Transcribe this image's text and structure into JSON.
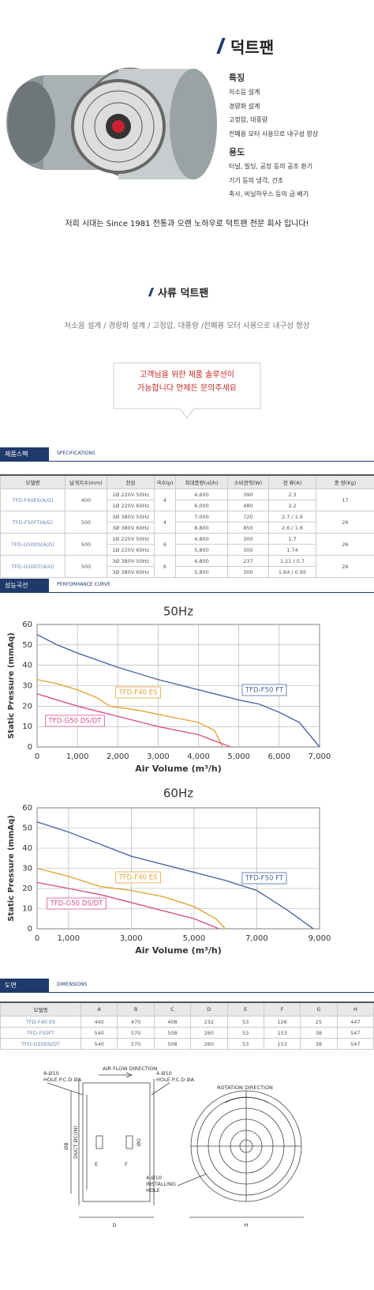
{
  "header": {
    "title": "덕트팬",
    "features_heading": "특징",
    "features": [
      "저소음 설계",
      "경량화 설계",
      "고정압, 대풍량",
      "전폐용 모터 사용으로 내구성 향상"
    ],
    "uses_heading": "용도",
    "uses": [
      "터널, 빌딩, 공장 등의 공조 환기",
      "기기 등의 냉각, 건조",
      "축사, 비닐하우스 등의 급·배기"
    ]
  },
  "slogan": "저희 시대는 Since 1981 전통과 오랜 노하우로 덕트팬 전문 회사 입니다!",
  "product": {
    "title": "사류 덕트팬",
    "subtitle": "저소음 설계 / 경량화 설계 / 고정압, 대풍량 /전폐용 모터 사용으로 내구성 향상"
  },
  "callout": [
    "고객님을 위한 제품 솔루션이",
    "가능합니다 언제든 문의주세요"
  ],
  "spec": {
    "tab": "제품스펙",
    "tab_en": "SPECIFICATIONS",
    "header": [
      "모델명",
      "날개지수(mm)",
      "전원",
      "극수(p)",
      "최대풍량(㎥/h)",
      "소비전력(W)",
      "전 류(A)",
      "중 량(Kg)"
    ],
    "rows": [
      {
        "model": "TFD-F40ES(A/G)",
        "blade": "400",
        "poles": "4",
        "weight": "17",
        "sub": [
          [
            "1Ø 220V 50Hz",
            "4,600",
            "390",
            "2.3"
          ],
          [
            "1Ø 220V 60Hz",
            "6,000",
            "480",
            "2.2"
          ]
        ]
      },
      {
        "model": "TFD-F50FT(A/G)",
        "blade": "500",
        "poles": "4",
        "weight": "26",
        "sub": [
          [
            "3Ø 380V 50Hz",
            "7,000",
            "720",
            "2.7 / 1.6"
          ],
          [
            "3Ø 380V 60Hz",
            "8,800",
            "850",
            "2.6 / 1.6"
          ]
        ]
      },
      {
        "model": "TFD-G50DS(A/G)",
        "blade": "500",
        "poles": "6",
        "weight": "26",
        "sub": [
          [
            "1Ø 220V 50Hz",
            "4,800",
            "300",
            "1.7"
          ],
          [
            "1Ø 220V 60Hz",
            "5,800",
            "300",
            "1.74"
          ]
        ]
      },
      {
        "model": "TFD-G50DT(A/G)",
        "blade": "500",
        "poles": "6",
        "weight": "26",
        "sub": [
          [
            "3Ø 380V 50Hz",
            "4,800",
            "237",
            "1.21 / 0.7"
          ],
          [
            "3Ø 380V 60Hz",
            "5,800",
            "300",
            "1.64 / 0.95"
          ]
        ]
      }
    ]
  },
  "performance": {
    "tab": "성능곡선",
    "tab_en": "PERFORMANCE CURVE"
  },
  "chart_data": [
    {
      "type": "line",
      "title": "50Hz",
      "x_label": "Air Volume (m³/h)",
      "y_label": "Static Pressure (mmAq)",
      "xlim": [
        0,
        7000
      ],
      "ylim": [
        0,
        60
      ],
      "xticks": [
        0,
        {
          "value": 1000,
          "label": "1,000"
        },
        {
          "value": 2000,
          "label": "2,000"
        },
        {
          "value": 3000,
          "label": "3,000"
        },
        {
          "value": 4000,
          "label": "4,000"
        },
        {
          "value": 5000,
          "label": "5,000"
        },
        {
          "value": 6000,
          "label": "6,000"
        },
        {
          "value": 7000,
          "label": "7,000"
        }
      ],
      "yticks": [
        0,
        10,
        20,
        30,
        40,
        50,
        60
      ],
      "grid": true,
      "series": [
        {
          "name": "TFD-F50 FT",
          "color": "#4a6aa5",
          "x": [
            0,
            500,
            1000,
            2000,
            3000,
            4000,
            5000,
            5500,
            6000,
            6500,
            7000
          ],
          "values": [
            55,
            50,
            46,
            39,
            33,
            28,
            23,
            21,
            17,
            12,
            0
          ]
        },
        {
          "name": "TFD-F40 ES",
          "color": "#e3a43a",
          "x": [
            0,
            500,
            1000,
            1500,
            1800,
            2500,
            3000,
            4000,
            4400,
            4600
          ],
          "values": [
            33,
            31,
            28,
            24,
            20,
            18,
            16,
            12,
            8,
            0
          ]
        },
        {
          "name": "TFD-G50 DS/DT",
          "color": "#d9508e",
          "x": [
            0,
            1000,
            2000,
            3000,
            4000,
            4800
          ],
          "values": [
            26,
            20,
            15,
            10,
            6,
            0
          ]
        }
      ]
    },
    {
      "type": "line",
      "title": "60Hz",
      "x_label": "Air Volume (m³/h)",
      "y_label": "Static Pressure (mmAq)",
      "xlim": [
        0,
        9000
      ],
      "ylim": [
        0,
        60
      ],
      "xticks": [
        0,
        {
          "value": 1000,
          "label": "1,000"
        },
        {
          "value": 3000,
          "label": "3,000"
        },
        {
          "value": 5000,
          "label": "5,000"
        },
        {
          "value": 7000,
          "label": "7,000"
        },
        {
          "value": 9000,
          "label": "9,000"
        }
      ],
      "yticks": [
        0,
        10,
        20,
        30,
        40,
        50,
        60
      ],
      "grid": true,
      "series": [
        {
          "name": "TFD-F50 FT",
          "color": "#4a6aa5",
          "x": [
            0,
            1000,
            2000,
            3000,
            4000,
            5000,
            6000,
            7000,
            8000,
            8800
          ],
          "values": [
            53,
            48,
            42,
            36,
            32,
            28,
            24,
            19,
            9,
            0
          ]
        },
        {
          "name": "TFD-F40 ES",
          "color": "#e3a43a",
          "x": [
            0,
            1000,
            2000,
            3000,
            4000,
            5000,
            5700,
            6000
          ],
          "values": [
            30,
            26,
            21,
            19,
            16,
            11,
            5,
            0
          ]
        },
        {
          "name": "TFD-G50 DS/DT",
          "color": "#d9508e",
          "x": [
            0,
            1000,
            2000,
            3000,
            4000,
            5000,
            5800
          ],
          "values": [
            23,
            20,
            17,
            13,
            9,
            5,
            0
          ]
        }
      ]
    }
  ],
  "dimensions": {
    "tab": "도면",
    "tab_en": "DIMENSIONS",
    "header": [
      "모델명",
      "A",
      "B",
      "C",
      "D",
      "E",
      "F",
      "G",
      "H"
    ],
    "rows": [
      [
        "TFD-F40 ES",
        "440",
        "470",
        "408",
        "232",
        "53",
        "126",
        "25",
        "447"
      ],
      [
        "TFD-F50FT",
        "540",
        "570",
        "508",
        "260",
        "53",
        "153",
        "38",
        "547"
      ],
      [
        "TFD-G50DS/DT",
        "540",
        "570",
        "508",
        "260",
        "53",
        "153",
        "38",
        "547"
      ]
    ]
  },
  "drawing": {
    "air_flow": "AIR FLOW DIRECTION",
    "hole_left": [
      "8-Ø10",
      "HOLE P.C.D ØA"
    ],
    "hole_right": [
      "4-Ø10",
      "HOLE P.C.D ØA"
    ],
    "rotation": "ROTATION DIRECTION",
    "b": "ØB",
    "c": "DUCT ØC(IN)",
    "g": "ØG",
    "e": "E",
    "f": "F",
    "install": [
      "4-Ø10",
      "INSTALLING",
      "HOLE"
    ],
    "d": "D",
    "h": "H"
  }
}
